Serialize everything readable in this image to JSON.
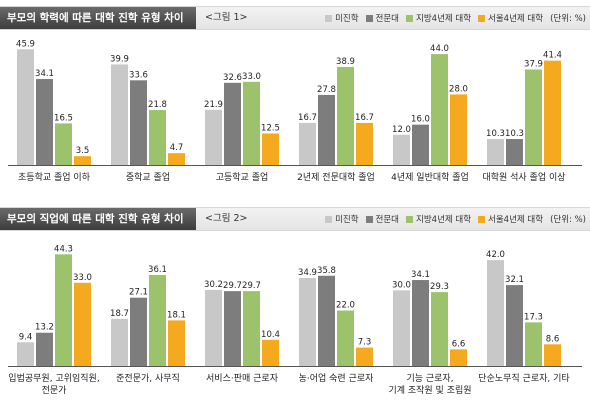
{
  "legend": {
    "series_names": [
      "미진학",
      "전문대",
      "지방4년제 대학",
      "서울4년제 대학"
    ],
    "unit_text": "(단위: %)"
  },
  "colors": {
    "미진학": "#c8c8c8",
    "전문대": "#7d7d7d",
    "지방4년제 대학": "#9cc36b",
    "서울4년제 대학": "#f5a91f"
  },
  "chart_data": [
    {
      "type": "bar",
      "title": "부모의 학력에 따른 대학 진학 유형 차이",
      "figure_label": "<그림 1>",
      "categories": [
        "초등학교 졸업 이하",
        "중학교 졸업",
        "고등학교 졸업",
        "2년제 전문대학 졸업",
        "4년제 일반대학 졸업",
        "대학원 석사 졸업 이상"
      ],
      "series": [
        {
          "name": "미진학",
          "values": [
            45.9,
            39.9,
            21.9,
            16.7,
            12.0,
            10.3
          ]
        },
        {
          "name": "전문대",
          "values": [
            34.1,
            33.6,
            32.6,
            27.8,
            16.0,
            10.3
          ]
        },
        {
          "name": "지방4년제 대학",
          "values": [
            16.5,
            21.8,
            33.0,
            38.9,
            44.0,
            37.9
          ]
        },
        {
          "name": "서울4년제 대학",
          "values": [
            3.5,
            4.7,
            12.5,
            16.7,
            28.0,
            41.4
          ]
        }
      ],
      "ylim": [
        0,
        48
      ],
      "grid": false,
      "legend": "top-right"
    },
    {
      "type": "bar",
      "title": "부모의 직업에 따른 대학 진학 유형 차이",
      "figure_label": "<그림 2>",
      "categories": [
        "입법공무원, 고위임직원,\n전문가",
        "준전문가, 사무직",
        "서비스·판매 근로자",
        "농·어업 숙련 근로자",
        "기능 근로자,\n기계 조작원 및 조립원",
        "단순노무직 근로자, 기타"
      ],
      "series": [
        {
          "name": "미진학",
          "values": [
            9.4,
            18.7,
            30.2,
            34.9,
            30.0,
            42.0
          ]
        },
        {
          "name": "전문대",
          "values": [
            13.2,
            27.1,
            29.7,
            35.8,
            34.1,
            32.1
          ]
        },
        {
          "name": "지방4년제 대학",
          "values": [
            44.3,
            36.1,
            29.7,
            22.0,
            29.3,
            17.3
          ]
        },
        {
          "name": "서울4년제 대학",
          "values": [
            33.0,
            18.1,
            10.4,
            7.3,
            6.6,
            8.6
          ]
        }
      ],
      "ylim": [
        0,
        48
      ],
      "grid": false,
      "legend": "top-right"
    }
  ]
}
